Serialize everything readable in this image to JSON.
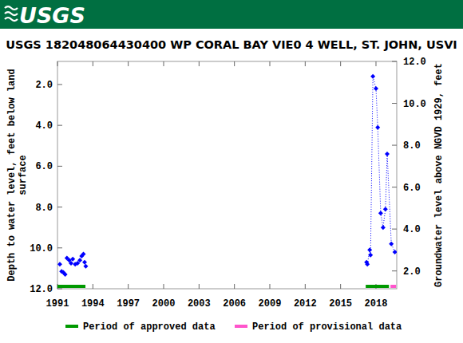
{
  "header": {
    "logo": "USGS"
  },
  "chart_data": {
    "type": "scatter",
    "title": "USGS 182048064430400 WP CORAL BAY VIE0 4 WELL, ST. JOHN, USVI",
    "ylabel": "Depth to water level, feet below land surface",
    "y2label": "Groundwater level above NGVD 1929, feet",
    "xlim": [
      1991,
      2019.76
    ],
    "xticks": [
      1991,
      1994,
      1997,
      2000,
      2003,
      2006,
      2009,
      2012,
      2015,
      2018
    ],
    "ylim": [
      12.0,
      0.87
    ],
    "yticks": [
      {
        "value": 2,
        "label": "2.0"
      },
      {
        "value": 4,
        "label": "4.0"
      },
      {
        "value": 6,
        "label": "6.0"
      },
      {
        "value": 8,
        "label": "8.0"
      },
      {
        "value": 10,
        "label": "10.0"
      },
      {
        "value": 12,
        "label": "12.0"
      }
    ],
    "y2lim": [
      1.15,
      12.0
    ],
    "y2ticks": [
      {
        "value": 2,
        "label": "2.0"
      },
      {
        "value": 4,
        "label": "4.0"
      },
      {
        "value": 6,
        "label": "6.0"
      },
      {
        "value": 8,
        "label": "8.0"
      },
      {
        "value": 10,
        "label": "10.0"
      },
      {
        "value": 12,
        "label": "12.0"
      }
    ],
    "grid": false,
    "series": [
      {
        "color": "#0000ff",
        "marker": "diamond",
        "line_style": "none",
        "x": [
          1991.2,
          1991.35,
          1991.5,
          1991.65,
          1991.8,
          1992.0,
          1992.15,
          1992.3,
          1992.5,
          1992.7,
          1992.9,
          1993.05,
          1993.2,
          1993.3,
          1993.4
        ],
        "values": [
          10.8,
          11.15,
          11.2,
          11.3,
          10.5,
          10.6,
          10.75,
          10.55,
          10.8,
          10.75,
          10.6,
          10.4,
          10.3,
          10.7,
          10.9
        ]
      },
      {
        "color": "#0000ff",
        "marker": "diamond",
        "line_style": "dotted",
        "x": [
          2017.2,
          2017.27,
          2017.47,
          2017.54,
          2017.74,
          2018.0,
          2018.15,
          2018.4,
          2018.6,
          2018.8,
          2018.95,
          2019.3,
          2019.6
        ],
        "values": [
          10.7,
          10.8,
          10.1,
          10.35,
          1.6,
          2.2,
          4.1,
          8.3,
          9.0,
          8.1,
          5.4,
          9.8,
          10.2
        ]
      }
    ],
    "periods": [
      {
        "name": "Period of approved data",
        "color": "#009900",
        "ranges": [
          [
            1991.0,
            1993.37
          ],
          [
            2017.13,
            2019.1
          ]
        ]
      },
      {
        "name": "Period of provisional data",
        "color": "#ff55cc",
        "ranges": [
          [
            2019.23,
            2019.7
          ]
        ]
      }
    ]
  }
}
